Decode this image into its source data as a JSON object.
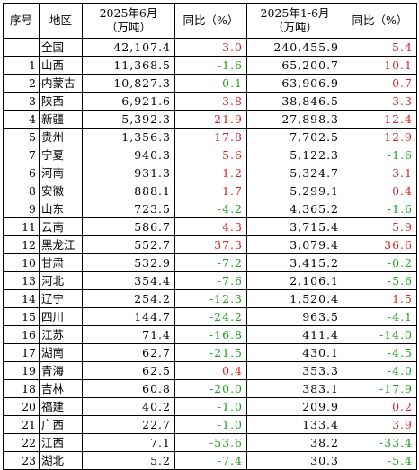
{
  "headers": {
    "index": "序号",
    "region": "地区",
    "june_line1": "2025年6月",
    "june_line2": "（万吨）",
    "june_yoy": "同比（%）",
    "ytd_line1": "2025年1-6月",
    "ytd_line2": "（万吨）",
    "ytd_yoy": "同比（%）"
  },
  "rows": [
    {
      "index": "",
      "region": "全国",
      "june": "42,107.4",
      "june_yoy": "3.0",
      "ytd": "240,455.9",
      "ytd_yoy": "5.4"
    },
    {
      "index": "1",
      "region": "山西",
      "june": "11,368.5",
      "june_yoy": "-1.6",
      "ytd": "65,200.7",
      "ytd_yoy": "10.1"
    },
    {
      "index": "2",
      "region": "内蒙古",
      "june": "10,827.3",
      "june_yoy": "-0.1",
      "ytd": "63,906.9",
      "ytd_yoy": "0.7"
    },
    {
      "index": "3",
      "region": "陕西",
      "june": "6,921.6",
      "june_yoy": "3.8",
      "ytd": "38,846.5",
      "ytd_yoy": "3.3"
    },
    {
      "index": "4",
      "region": "新疆",
      "june": "5,392.3",
      "june_yoy": "21.9",
      "ytd": "27,898.3",
      "ytd_yoy": "12.4"
    },
    {
      "index": "5",
      "region": "贵州",
      "june": "1,356.3",
      "june_yoy": "17.8",
      "ytd": "7,702.5",
      "ytd_yoy": "12.9"
    },
    {
      "index": "7",
      "region": "宁夏",
      "june": "940.3",
      "june_yoy": "5.6",
      "ytd": "5,122.3",
      "ytd_yoy": "-1.6"
    },
    {
      "index": "6",
      "region": "河南",
      "june": "931.3",
      "june_yoy": "1.2",
      "ytd": "5,324.7",
      "ytd_yoy": "3.1"
    },
    {
      "index": "8",
      "region": "安徽",
      "june": "888.1",
      "june_yoy": "1.7",
      "ytd": "5,299.1",
      "ytd_yoy": "0.4"
    },
    {
      "index": "9",
      "region": "山东",
      "june": "723.5",
      "june_yoy": "-4.2",
      "ytd": "4,365.2",
      "ytd_yoy": "-1.6"
    },
    {
      "index": "11",
      "region": "云南",
      "june": "586.7",
      "june_yoy": "4.3",
      "ytd": "3,715.4",
      "ytd_yoy": "5.9"
    },
    {
      "index": "12",
      "region": "黑龙江",
      "june": "552.7",
      "june_yoy": "37.3",
      "ytd": "3,079.4",
      "ytd_yoy": "36.6"
    },
    {
      "index": "10",
      "region": "甘肃",
      "june": "532.9",
      "june_yoy": "-7.2",
      "ytd": "3,415.2",
      "ytd_yoy": "-0.2"
    },
    {
      "index": "13",
      "region": "河北",
      "june": "354.4",
      "june_yoy": "-7.6",
      "ytd": "2,106.1",
      "ytd_yoy": "-5.6"
    },
    {
      "index": "14",
      "region": "辽宁",
      "june": "254.2",
      "june_yoy": "-12.3",
      "ytd": "1,520.4",
      "ytd_yoy": "1.5"
    },
    {
      "index": "15",
      "region": "四川",
      "june": "144.7",
      "june_yoy": "-24.2",
      "ytd": "963.5",
      "ytd_yoy": "-4.1"
    },
    {
      "index": "16",
      "region": "江苏",
      "june": "71.4",
      "june_yoy": "-16.8",
      "ytd": "411.4",
      "ytd_yoy": "-14.0"
    },
    {
      "index": "17",
      "region": "湖南",
      "june": "62.7",
      "june_yoy": "-21.5",
      "ytd": "430.1",
      "ytd_yoy": "-4.5"
    },
    {
      "index": "19",
      "region": "青海",
      "june": "62.5",
      "june_yoy": "0.4",
      "ytd": "353.3",
      "ytd_yoy": "-4.0"
    },
    {
      "index": "18",
      "region": "吉林",
      "june": "60.8",
      "june_yoy": "-20.0",
      "ytd": "383.1",
      "ytd_yoy": "-17.9"
    },
    {
      "index": "20",
      "region": "福建",
      "june": "40.2",
      "june_yoy": "-1.0",
      "ytd": "209.9",
      "ytd_yoy": "0.2"
    },
    {
      "index": "21",
      "region": "广西",
      "june": "22.7",
      "june_yoy": "-1.0",
      "ytd": "133.4",
      "ytd_yoy": "3.9"
    },
    {
      "index": "22",
      "region": "江西",
      "june": "7.1",
      "june_yoy": "-53.6",
      "ytd": "38.2",
      "ytd_yoy": "-33.4"
    },
    {
      "index": "23",
      "region": "湖北",
      "june": "5.2",
      "june_yoy": "-7.4",
      "ytd": "30.3",
      "ytd_yoy": "-5.4"
    }
  ],
  "colors": {
    "positive": "#e02020",
    "negative": "#1aa11a"
  }
}
